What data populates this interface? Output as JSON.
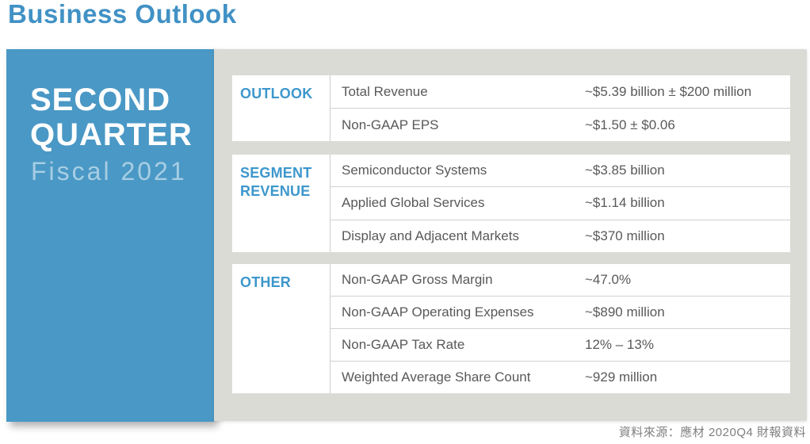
{
  "page": {
    "title": "Business Outlook"
  },
  "quarter_panel": {
    "line1": "SECOND",
    "line2": "QUARTER",
    "subtitle": "Fiscal 2021"
  },
  "sections": [
    {
      "label": "OUTLOOK",
      "rows": [
        {
          "name": "Total Revenue",
          "value": "~$5.39 billion ± $200 million"
        },
        {
          "name": "Non-GAAP EPS",
          "value": "~$1.50 ± $0.06"
        }
      ]
    },
    {
      "label": "SEGMENT REVENUE",
      "rows": [
        {
          "name": "Semiconductor Systems",
          "value": "~$3.85 billion"
        },
        {
          "name": "Applied Global Services",
          "value": "~$1.14 billion"
        },
        {
          "name": "Display and Adjacent Markets",
          "value": "~$370 million"
        }
      ]
    },
    {
      "label": "OTHER",
      "rows": [
        {
          "name": "Non-GAAP Gross Margin",
          "value": "~47.0%"
        },
        {
          "name": "Non-GAAP Operating Expenses",
          "value": "~$890 million"
        },
        {
          "name": "Non-GAAP Tax Rate",
          "value": "12% – 13%"
        },
        {
          "name": "Weighted Average Share Count",
          "value": "~929 million"
        }
      ]
    }
  ],
  "footer": {
    "source": "資料來源：應材 2020Q4 財報資料"
  },
  "colors": {
    "title_blue": "#4191C5",
    "panel_blue": "#4A98C5",
    "subtitle_light_blue": "#A7CEE4",
    "section_label_blue": "#3D97CC",
    "row_text_gray": "#595959",
    "background_gray": "#DBDBD6",
    "divider_gray": "#CDCDCD",
    "source_text_gray": "#7F7F7F"
  }
}
